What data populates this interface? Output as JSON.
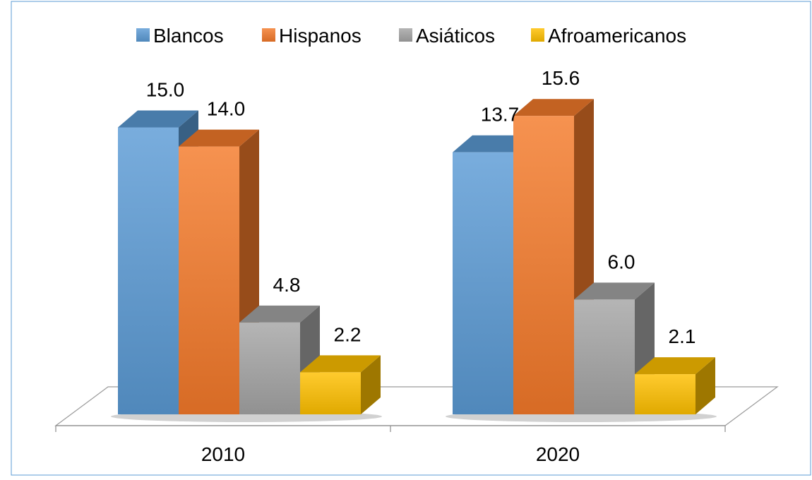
{
  "chart_data": {
    "type": "bar",
    "categories": [
      "2010",
      "2020"
    ],
    "series": [
      {
        "name": "Blancos",
        "values": [
          15.0,
          13.7
        ],
        "color": "#5B9BD5"
      },
      {
        "name": "Hispanos",
        "values": [
          14.0,
          15.6
        ],
        "color": "#F47A2A"
      },
      {
        "name": "Asiáticos",
        "values": [
          4.8,
          6.0
        ],
        "color": "#A5A5A5"
      },
      {
        "name": "Afroamericanos",
        "values": [
          2.2,
          2.1
        ],
        "color": "#FFC000"
      }
    ],
    "value_labels": {
      "2010": [
        "15.0",
        "14.0",
        "4.8",
        "2.2"
      ],
      "2020": [
        "13.7",
        "15.6",
        "6.0",
        "2.1"
      ]
    },
    "title": "",
    "xlabel": "",
    "ylabel": "",
    "ylim": [
      0,
      17
    ],
    "grid": false,
    "legend_position": "top",
    "style": "3d-clustered-column"
  }
}
